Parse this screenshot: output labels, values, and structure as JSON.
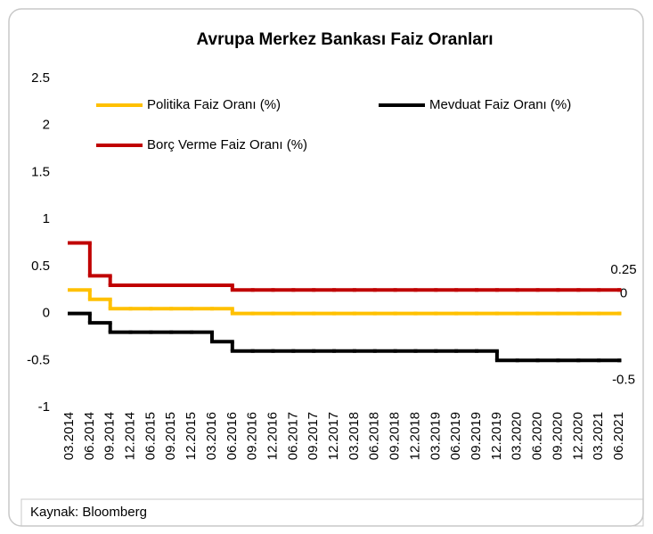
{
  "chart_data": {
    "type": "step-line",
    "title": "Avrupa Merkez Bankası Faiz Oranları",
    "source": "Kaynak: Bloomberg",
    "categories": [
      "03.2014",
      "06.2014",
      "09.2014",
      "12.2014",
      "06.2015",
      "09.2015",
      "12.2015",
      "03.2016",
      "06.2016",
      "09.2016",
      "12.2016",
      "06.2017",
      "09.2017",
      "12.2017",
      "03.2018",
      "06.2018",
      "09.2018",
      "12.2018",
      "03.2019",
      "06.2019",
      "09.2019",
      "12.2019",
      "03.2020",
      "06.2020",
      "09.2020",
      "12.2020",
      "03.2021",
      "06.2021"
    ],
    "series": [
      {
        "name": "Politika Faiz Oranı (%)",
        "color": "#FFC000",
        "values": [
          0.25,
          0.15,
          0.05,
          0.05,
          0.05,
          0.05,
          0.05,
          0.05,
          0,
          0,
          0,
          0,
          0,
          0,
          0,
          0,
          0,
          0,
          0,
          0,
          0,
          0,
          0,
          0,
          0,
          0,
          0,
          0
        ]
      },
      {
        "name": "Mevduat Faiz Oranı (%)",
        "color": "#000000",
        "values": [
          0,
          -0.1,
          -0.2,
          -0.2,
          -0.2,
          -0.2,
          -0.2,
          -0.3,
          -0.4,
          -0.4,
          -0.4,
          -0.4,
          -0.4,
          -0.4,
          -0.4,
          -0.4,
          -0.4,
          -0.4,
          -0.4,
          -0.4,
          -0.4,
          -0.5,
          -0.5,
          -0.5,
          -0.5,
          -0.5,
          -0.5,
          -0.5
        ]
      },
      {
        "name": "Borç Verme Faiz Oranı (%)",
        "color": "#C00000",
        "values": [
          0.75,
          0.4,
          0.3,
          0.3,
          0.3,
          0.3,
          0.3,
          0.3,
          0.25,
          0.25,
          0.25,
          0.25,
          0.25,
          0.25,
          0.25,
          0.25,
          0.25,
          0.25,
          0.25,
          0.25,
          0.25,
          0.25,
          0.25,
          0.25,
          0.25,
          0.25,
          0.25,
          0.25
        ]
      }
    ],
    "ylim": [
      -1,
      2.5
    ],
    "yticks": [
      -1,
      -0.5,
      0,
      0.5,
      1,
      1.5,
      2,
      2.5
    ],
    "grid": false
  }
}
